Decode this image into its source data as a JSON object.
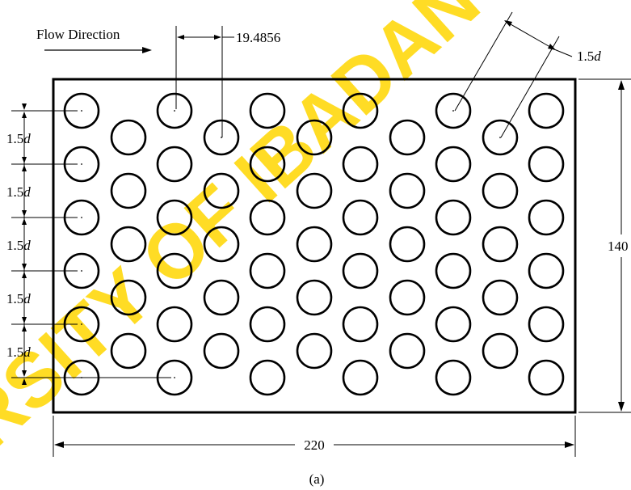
{
  "watermark": "RSITY OF IBADAN",
  "flow_label": "Flow Direction",
  "pitch_label": "19.4856",
  "diag_label": {
    "num": "1.5",
    "var": "d"
  },
  "left_labels": [
    {
      "num": "1.5",
      "var": "d"
    },
    {
      "num": "1.5",
      "var": "d"
    },
    {
      "num": "1.5",
      "var": "d"
    },
    {
      "num": "1.5",
      "var": "d"
    },
    {
      "num": "1.5",
      "var": "d"
    }
  ],
  "width_label": "220",
  "height_label": "140",
  "caption": "(a)",
  "colors": {
    "stroke": "#000000",
    "watermark": "#FFD700"
  }
}
